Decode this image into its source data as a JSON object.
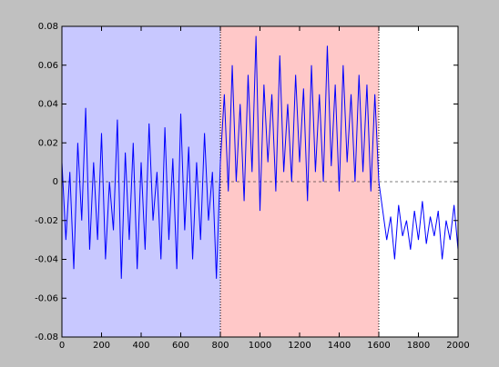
{
  "chart_data": {
    "type": "line",
    "x": [
      0,
      20,
      40,
      60,
      80,
      100,
      120,
      140,
      160,
      180,
      200,
      220,
      240,
      260,
      280,
      300,
      320,
      340,
      360,
      380,
      400,
      420,
      440,
      460,
      480,
      500,
      520,
      540,
      560,
      580,
      600,
      620,
      640,
      660,
      680,
      700,
      720,
      740,
      760,
      780,
      800,
      820,
      840,
      860,
      880,
      900,
      920,
      940,
      960,
      980,
      1000,
      1020,
      1040,
      1060,
      1080,
      1100,
      1120,
      1140,
      1160,
      1180,
      1200,
      1220,
      1240,
      1260,
      1280,
      1300,
      1320,
      1340,
      1360,
      1380,
      1400,
      1420,
      1440,
      1460,
      1480,
      1500,
      1520,
      1540,
      1560,
      1580,
      1600,
      1620,
      1640,
      1660,
      1680,
      1700,
      1720,
      1740,
      1760,
      1780,
      1800,
      1820,
      1840,
      1860,
      1880,
      1900,
      1920,
      1940,
      1960,
      1980,
      2000
    ],
    "values": [
      0.01,
      -0.03,
      0.005,
      -0.045,
      0.02,
      -0.02,
      0.038,
      -0.035,
      0.01,
      -0.03,
      0.025,
      -0.04,
      0.0,
      -0.025,
      0.032,
      -0.05,
      0.015,
      -0.03,
      0.02,
      -0.045,
      0.01,
      -0.035,
      0.03,
      -0.02,
      0.005,
      -0.04,
      0.028,
      -0.03,
      0.012,
      -0.045,
      0.035,
      -0.025,
      0.018,
      -0.04,
      0.01,
      -0.03,
      0.025,
      -0.02,
      0.005,
      -0.05,
      0.01,
      0.045,
      -0.005,
      0.06,
      0.0,
      0.04,
      -0.01,
      0.055,
      0.005,
      0.075,
      -0.015,
      0.05,
      0.01,
      0.045,
      -0.005,
      0.065,
      0.005,
      0.04,
      0.0,
      0.055,
      0.01,
      0.048,
      -0.01,
      0.06,
      0.005,
      0.045,
      0.0,
      0.07,
      0.008,
      0.05,
      -0.005,
      0.06,
      0.01,
      0.045,
      0.0,
      0.055,
      0.005,
      0.05,
      -0.005,
      0.045,
      0.0,
      -0.015,
      -0.03,
      -0.018,
      -0.04,
      -0.012,
      -0.028,
      -0.02,
      -0.035,
      -0.015,
      -0.03,
      -0.01,
      -0.032,
      -0.018,
      -0.028,
      -0.015,
      -0.04,
      -0.02,
      -0.03,
      -0.012,
      -0.035
    ],
    "color": "#0000ff",
    "regions": [
      {
        "start": 0,
        "end": 800,
        "color": "#c8c8ff"
      },
      {
        "start": 800,
        "end": 1600,
        "color": "#ffc8c8"
      },
      {
        "start": 1600,
        "end": 2000,
        "color": "#ffffff"
      }
    ],
    "reference_line": 0,
    "xlim": [
      0,
      2000
    ],
    "xticks": [
      0,
      200,
      400,
      600,
      800,
      1000,
      1200,
      1400,
      1600,
      1800,
      2000
    ],
    "ylim": [
      -0.08,
      0.08
    ],
    "yticks": [
      -0.08,
      -0.06,
      -0.04,
      -0.02,
      0,
      0.02,
      0.04,
      0.06,
      0.08
    ]
  }
}
